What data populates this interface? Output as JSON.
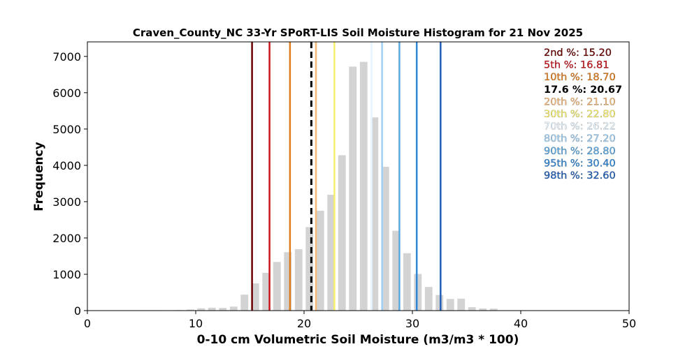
{
  "chart_data": {
    "type": "bar",
    "title": "Craven_County_NC 33-Yr SPoRT-LIS Soil Moisture Histogram for 21 Nov 2025",
    "xlabel": "0-10 cm Volumetric Soil Moisture (m3/m3 * 100)",
    "ylabel": "Frequency",
    "xlim": [
      0,
      50
    ],
    "ylim": [
      0,
      7400
    ],
    "xticks": [
      0,
      10,
      20,
      30,
      40,
      50
    ],
    "yticks": [
      0,
      1000,
      2000,
      3000,
      4000,
      5000,
      6000,
      7000
    ],
    "bar_color": "#d3d3d3",
    "bars": [
      {
        "x": 5.5,
        "value": 10
      },
      {
        "x": 6.5,
        "value": 10
      },
      {
        "x": 8.5,
        "value": 15
      },
      {
        "x": 9.5,
        "value": 30
      },
      {
        "x": 10.5,
        "value": 65
      },
      {
        "x": 11.5,
        "value": 80
      },
      {
        "x": 12.5,
        "value": 75
      },
      {
        "x": 13.5,
        "value": 110
      },
      {
        "x": 14.5,
        "value": 440
      },
      {
        "x": 15.5,
        "value": 750
      },
      {
        "x": 16.5,
        "value": 1040
      },
      {
        "x": 17.5,
        "value": 1340
      },
      {
        "x": 18.5,
        "value": 1610
      },
      {
        "x": 19.5,
        "value": 1690
      },
      {
        "x": 20.5,
        "value": 2300
      },
      {
        "x": 21.5,
        "value": 2750
      },
      {
        "x": 22.5,
        "value": 3190
      },
      {
        "x": 23.5,
        "value": 4280
      },
      {
        "x": 24.5,
        "value": 6720
      },
      {
        "x": 25.5,
        "value": 6850
      },
      {
        "x": 26.5,
        "value": 5320
      },
      {
        "x": 27.5,
        "value": 3960
      },
      {
        "x": 28.5,
        "value": 2200
      },
      {
        "x": 29.5,
        "value": 1580
      },
      {
        "x": 30.5,
        "value": 1010
      },
      {
        "x": 31.5,
        "value": 650
      },
      {
        "x": 32.5,
        "value": 430
      },
      {
        "x": 33.5,
        "value": 320
      },
      {
        "x": 34.5,
        "value": 330
      },
      {
        "x": 35.5,
        "value": 95
      },
      {
        "x": 36.5,
        "value": 60
      },
      {
        "x": 37.5,
        "value": 55
      }
    ],
    "percentile_lines": [
      {
        "label": "2nd %: 15.20",
        "value": 15.2,
        "color": "#6b0000",
        "dashed": false
      },
      {
        "label": "5th %: 16.81",
        "value": 16.81,
        "color": "#c8161c",
        "dashed": false
      },
      {
        "label": "10th %: 18.70",
        "value": 18.7,
        "color": "#e07b1a",
        "dashed": false
      },
      {
        "label": "17.6 %: 20.67",
        "value": 20.67,
        "color": "#000000",
        "dashed": true
      },
      {
        "label": "20th %: 21.10",
        "value": 21.1,
        "color": "#f5b97a",
        "dashed": false
      },
      {
        "label": "30th %: 22.80",
        "value": 22.8,
        "color": "#f7f06c",
        "dashed": false
      },
      {
        "label": "70th %: 26.22",
        "value": 26.22,
        "color": "#e6f5ff",
        "dashed": false
      },
      {
        "label": "80th %: 27.20",
        "value": 27.2,
        "color": "#9fd0f5",
        "dashed": false
      },
      {
        "label": "90th %: 28.80",
        "value": 28.8,
        "color": "#5ba8e0",
        "dashed": false
      },
      {
        "label": "95th %: 30.40",
        "value": 30.4,
        "color": "#2f86d6",
        "dashed": false
      },
      {
        "label": "98th %: 32.60",
        "value": 32.6,
        "color": "#1f5fb8",
        "dashed": false
      }
    ],
    "legend_placement": "top-right",
    "grid": false
  }
}
